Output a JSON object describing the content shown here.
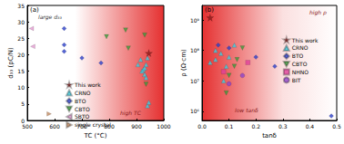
{
  "chart_data": [
    {
      "type": "scatter",
      "xlabel": "TC (°C)",
      "ylabel": "d₃₃ (pC/N)",
      "annotations": [
        "(a)",
        "large d₃₃",
        "high TC"
      ],
      "xlim": [
        500,
        1000
      ],
      "xticks": [
        500,
        600,
        700,
        800,
        900,
        1000
      ],
      "ylim": [
        0,
        35
      ],
      "yticks": [
        0,
        5,
        10,
        15,
        20,
        25,
        30,
        35
      ],
      "grid": false,
      "legend": "lower center",
      "series": [
        {
          "name": "This work",
          "color": "#8b1a1a",
          "marker": "star",
          "x": [
            945
          ],
          "values": [
            20.5
          ]
        },
        {
          "name": "CRNO",
          "color": "#3fcde0",
          "marker": "triangle",
          "x": [
            905,
            915,
            920,
            925,
            930,
            930,
            935,
            935,
            940,
            940,
            945
          ],
          "values": [
            17,
            18.5,
            15,
            15.5,
            14,
            16,
            17,
            13,
            19,
            4.5,
            5.5
          ]
        },
        {
          "name": "BTO",
          "color": "#2a3fc8",
          "marker": "diamond",
          "x": [
            635,
            635,
            635,
            700,
            770
          ],
          "values": [
            28,
            23,
            21,
            19,
            17.5
          ]
        },
        {
          "name": "CBTO",
          "color": "#3a9a3a",
          "marker": "triangle-down",
          "x": [
            790,
            860,
            870,
            930,
            935
          ],
          "values": [
            25.5,
            27.5,
            22,
            26,
            11
          ]
        },
        {
          "name": "SBTO",
          "color": "#e29ad0",
          "marker": "triangle-left",
          "x": [
            515,
            520
          ],
          "values": [
            28,
            22.5
          ]
        },
        {
          "name": "single crystal",
          "color": "#c08a60",
          "marker": "triangle-right",
          "x": [
            580
          ],
          "values": [
            2
          ]
        }
      ]
    },
    {
      "type": "scatter",
      "xlabel": "tanδ",
      "ylabel": "ρ (Ω·cm)",
      "annotations": [
        "(b)",
        "high ρ",
        "low tanδ"
      ],
      "xlim": [
        0,
        0.5
      ],
      "xticks": [
        {
          "value": 0,
          "label": "0.0"
        },
        0.1,
        0.2,
        0.3,
        0.4,
        0.5
      ],
      "ylim": [
        500000,
        3000000000
      ],
      "yticks": [
        {
          "value": 1000000,
          "label": "10⁶"
        },
        {
          "value": 10000000,
          "label": "10⁷"
        },
        {
          "value": 100000000,
          "label": "10⁸"
        },
        {
          "value": 1000000000,
          "label": "10⁹"
        }
      ],
      "log": "y",
      "grid": false,
      "legend": "right",
      "series": [
        {
          "name": "This work",
          "color": "#8b1a1a",
          "marker": "star",
          "x": [
            0.03
          ],
          "values": [
            1200000000
          ]
        },
        {
          "name": "CRNO",
          "color": "#3fcde0",
          "marker": "triangle",
          "x": [
            0.03,
            0.05,
            0.05,
            0.07,
            0.08,
            0.09,
            0.1,
            0.12
          ],
          "values": [
            40000000,
            100000000,
            50000000,
            80000000,
            10000000,
            30000000,
            60000000,
            150000000
          ]
        },
        {
          "name": "BTO",
          "color": "#2a3fc8",
          "marker": "diamond",
          "x": [
            0.06,
            0.1,
            0.2,
            0.27,
            0.48
          ],
          "values": [
            150000000,
            120000000,
            60000000,
            30000000,
            700000
          ]
        },
        {
          "name": "CBTO",
          "color": "#3a9a3a",
          "marker": "triangle-down",
          "x": [
            0.09,
            0.1,
            0.12,
            0.13,
            0.15
          ],
          "values": [
            4000000,
            15000000,
            30000000,
            50000000,
            120000000
          ]
        },
        {
          "name": "NHNO",
          "color": "#e0409a",
          "marker": "square",
          "x": [
            0.08,
            0.17
          ],
          "values": [
            20000000,
            40000000
          ]
        },
        {
          "name": "BIT",
          "color": "#8e44c8",
          "marker": "circle",
          "x": [
            0.1,
            0.15
          ],
          "values": [
            8000000,
            15000000
          ]
        }
      ]
    }
  ]
}
